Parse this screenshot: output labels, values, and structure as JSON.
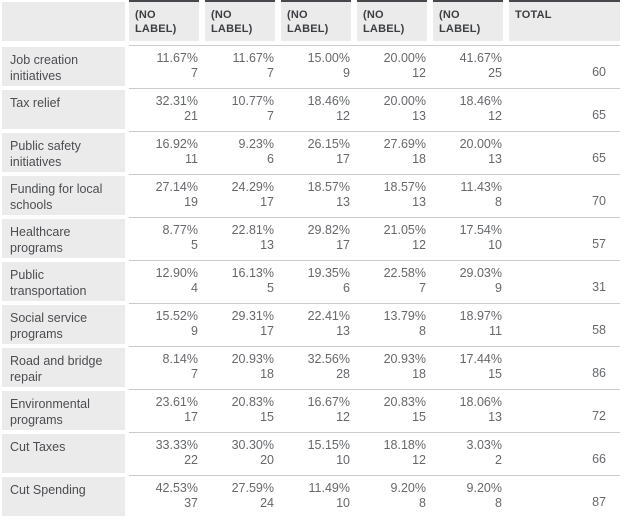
{
  "chart_data": {
    "type": "table",
    "headers": [
      "(NO LABEL)",
      "(NO LABEL)",
      "(NO LABEL)",
      "(NO LABEL)",
      "(NO LABEL)",
      "TOTAL"
    ],
    "colors": {
      "header_cell_background": "#ebebeb",
      "label_cell_background": "#ebebeb",
      "header_top_border": "#46484b",
      "row_divider": "#cbcbcb",
      "header_text": "#3c3e41",
      "label_text": "#4b4d50",
      "value_text": "#66686b"
    },
    "rows": [
      {
        "label": "Job creation initiatives",
        "cells": [
          {
            "pct": "11.67%",
            "count": 7
          },
          {
            "pct": "11.67%",
            "count": 7
          },
          {
            "pct": "15.00%",
            "count": 9
          },
          {
            "pct": "20.00%",
            "count": 12
          },
          {
            "pct": "41.67%",
            "count": 25
          }
        ],
        "total": 60
      },
      {
        "label": "Tax relief",
        "cells": [
          {
            "pct": "32.31%",
            "count": 21
          },
          {
            "pct": "10.77%",
            "count": 7
          },
          {
            "pct": "18.46%",
            "count": 12
          },
          {
            "pct": "20.00%",
            "count": 13
          },
          {
            "pct": "18.46%",
            "count": 12
          }
        ],
        "total": 65
      },
      {
        "label": "Public safety initiatives",
        "cells": [
          {
            "pct": "16.92%",
            "count": 11
          },
          {
            "pct": "9.23%",
            "count": 6
          },
          {
            "pct": "26.15%",
            "count": 17
          },
          {
            "pct": "27.69%",
            "count": 18
          },
          {
            "pct": "20.00%",
            "count": 13
          }
        ],
        "total": 65
      },
      {
        "label": "Funding for local schools",
        "cells": [
          {
            "pct": "27.14%",
            "count": 19
          },
          {
            "pct": "24.29%",
            "count": 17
          },
          {
            "pct": "18.57%",
            "count": 13
          },
          {
            "pct": "18.57%",
            "count": 13
          },
          {
            "pct": "11.43%",
            "count": 8
          }
        ],
        "total": 70
      },
      {
        "label": "Healthcare programs",
        "cells": [
          {
            "pct": "8.77%",
            "count": 5
          },
          {
            "pct": "22.81%",
            "count": 13
          },
          {
            "pct": "29.82%",
            "count": 17
          },
          {
            "pct": "21.05%",
            "count": 12
          },
          {
            "pct": "17.54%",
            "count": 10
          }
        ],
        "total": 57
      },
      {
        "label": "Public transportation",
        "cells": [
          {
            "pct": "12.90%",
            "count": 4
          },
          {
            "pct": "16.13%",
            "count": 5
          },
          {
            "pct": "19.35%",
            "count": 6
          },
          {
            "pct": "22.58%",
            "count": 7
          },
          {
            "pct": "29.03%",
            "count": 9
          }
        ],
        "total": 31
      },
      {
        "label": "Social service programs",
        "cells": [
          {
            "pct": "15.52%",
            "count": 9
          },
          {
            "pct": "29.31%",
            "count": 17
          },
          {
            "pct": "22.41%",
            "count": 13
          },
          {
            "pct": "13.79%",
            "count": 8
          },
          {
            "pct": "18.97%",
            "count": 11
          }
        ],
        "total": 58
      },
      {
        "label": "Road and bridge repair",
        "cells": [
          {
            "pct": "8.14%",
            "count": 7
          },
          {
            "pct": "20.93%",
            "count": 18
          },
          {
            "pct": "32.56%",
            "count": 28
          },
          {
            "pct": "20.93%",
            "count": 18
          },
          {
            "pct": "17.44%",
            "count": 15
          }
        ],
        "total": 86
      },
      {
        "label": "Environmental programs",
        "cells": [
          {
            "pct": "23.61%",
            "count": 17
          },
          {
            "pct": "20.83%",
            "count": 15
          },
          {
            "pct": "16.67%",
            "count": 12
          },
          {
            "pct": "20.83%",
            "count": 15
          },
          {
            "pct": "18.06%",
            "count": 13
          }
        ],
        "total": 72
      },
      {
        "label": "Cut Taxes",
        "cells": [
          {
            "pct": "33.33%",
            "count": 22
          },
          {
            "pct": "30.30%",
            "count": 20
          },
          {
            "pct": "15.15%",
            "count": 10
          },
          {
            "pct": "18.18%",
            "count": 12
          },
          {
            "pct": "3.03%",
            "count": 2
          }
        ],
        "total": 66
      },
      {
        "label": "Cut Spending",
        "cells": [
          {
            "pct": "42.53%",
            "count": 37
          },
          {
            "pct": "27.59%",
            "count": 24
          },
          {
            "pct": "11.49%",
            "count": 10
          },
          {
            "pct": "9.20%",
            "count": 8
          },
          {
            "pct": "9.20%",
            "count": 8
          }
        ],
        "total": 87
      }
    ]
  }
}
